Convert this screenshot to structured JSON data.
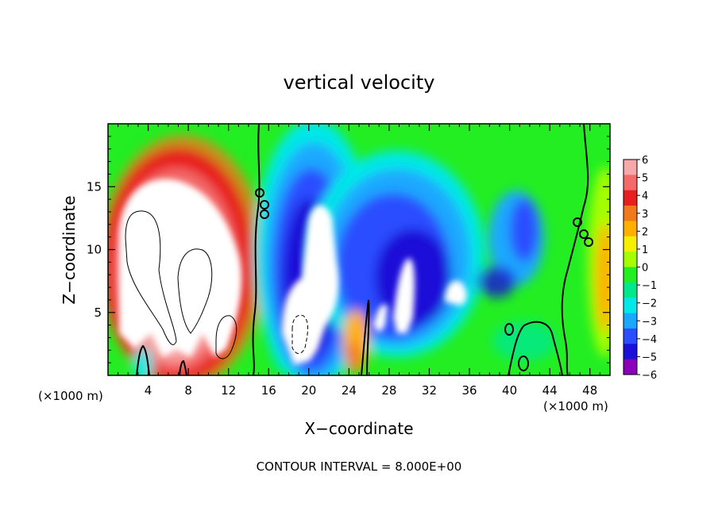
{
  "chart_data": {
    "type": "heatmap",
    "title": "vertical velocity",
    "xlabel": "X−coordinate",
    "ylabel": "Z−coordinate",
    "x_unit_left": "(×1000 m)",
    "x_unit_right": "(×1000 m)",
    "footer": "CONTOUR INTERVAL = 8.000E+00",
    "xlim": [
      0,
      50
    ],
    "ylim": [
      0,
      20
    ],
    "x_ticks": [
      4,
      8,
      12,
      16,
      20,
      24,
      28,
      32,
      36,
      40,
      44,
      48
    ],
    "x_tick_labels": [
      "4",
      "8",
      "12",
      "16",
      "20",
      "24",
      "28",
      "32",
      "36",
      "40",
      "44",
      "48"
    ],
    "y_ticks": [
      5,
      10,
      15
    ],
    "y_tick_labels": [
      "5",
      "10",
      "15"
    ],
    "colorbar": {
      "range": [
        -6,
        6
      ],
      "labels": [
        "6",
        "5",
        "4",
        "3",
        "2",
        "1",
        "0",
        "−1",
        "−2",
        "−3",
        "−4",
        "−5",
        "−6"
      ],
      "colors": [
        "#f7a8a8",
        "#f46a6a",
        "#e81f1f",
        "#f07a1a",
        "#ffb000",
        "#f6f000",
        "#a6ff00",
        "#22ee22",
        "#00e88e",
        "#00e8e8",
        "#1aa8ff",
        "#2b4dff",
        "#1c0fd8",
        "#8a00b8"
      ]
    },
    "features": [
      {
        "kind": "updraft",
        "x": [
          0.5,
          14.5
        ],
        "z": [
          0.3,
          18.5
        ],
        "max": 6
      },
      {
        "kind": "downdraft",
        "x": [
          16.0,
          24.0
        ],
        "z": [
          0.3,
          15.5
        ],
        "min": -6
      },
      {
        "kind": "downdraft",
        "x": [
          25.0,
          37.0
        ],
        "z": [
          1.0,
          15.0
        ],
        "min": -6
      },
      {
        "kind": "downdraft",
        "x": [
          36.0,
          41.0
        ],
        "z": [
          5.0,
          14.0
        ],
        "min": -5
      },
      {
        "kind": "updraft",
        "x": [
          47.0,
          50.0
        ],
        "z": [
          0.5,
          18.0
        ],
        "max": 3
      }
    ]
  }
}
